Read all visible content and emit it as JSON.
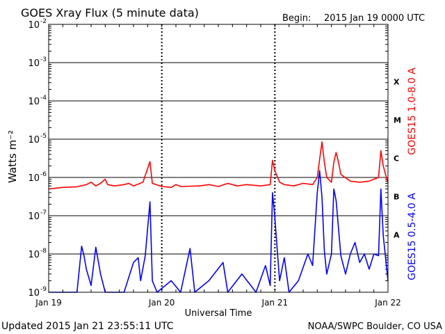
{
  "header": {
    "title": "GOES Xray Flux (5 minute data)",
    "begin_label": "Begin:",
    "begin_value": "2015 Jan 19 0000 UTC"
  },
  "footer": {
    "updated": "Updated 2015 Jan 21 23:55:11 UTC",
    "credit": "NOAA/SWPC Boulder, CO USA"
  },
  "colors": {
    "long_channel": "#ff0000",
    "short_channel": "#0000ff",
    "grid": "#000000"
  },
  "chart_data": {
    "type": "line",
    "title": "GOES Xray Flux (5 minute data)",
    "xlabel": "Universal Time",
    "ylabel": "Watts m⁻²",
    "y_scale": "log",
    "ylim": [
      1e-09,
      0.01
    ],
    "xlim": [
      0,
      72
    ],
    "x_units": "hours since 2015 Jan 19 0000 UTC",
    "x_ticks": [
      {
        "x": 0,
        "label": "Jan 19"
      },
      {
        "x": 24,
        "label": "Jan 20"
      },
      {
        "x": 48,
        "label": "Jan 21"
      },
      {
        "x": 72,
        "label": "Jan 22"
      }
    ],
    "y_ticks": [
      {
        "exp": -9,
        "label": "10",
        "sup": "-9"
      },
      {
        "exp": -8,
        "label": "10",
        "sup": "-8"
      },
      {
        "exp": -7,
        "label": "10",
        "sup": "-7"
      },
      {
        "exp": -6,
        "label": "10",
        "sup": "-6"
      },
      {
        "exp": -5,
        "label": "10",
        "sup": "-5"
      },
      {
        "exp": -4,
        "label": "10",
        "sup": "-4"
      },
      {
        "exp": -3,
        "label": "10",
        "sup": "-3"
      },
      {
        "exp": -2,
        "label": "10",
        "sup": "-2"
      }
    ],
    "flare_classes": [
      {
        "label": "A",
        "exp": -7.5
      },
      {
        "label": "B",
        "exp": -6.5
      },
      {
        "label": "C",
        "exp": -5.5
      },
      {
        "label": "M",
        "exp": -4.5
      },
      {
        "label": "X",
        "exp": -3.5
      }
    ],
    "grid": true,
    "series": [
      {
        "name": "GOES15 1.0-8.0 A",
        "color": "#ff0000",
        "points": [
          [
            0,
            5e-07
          ],
          [
            3,
            5.5e-07
          ],
          [
            6,
            5.7e-07
          ],
          [
            8,
            6.5e-07
          ],
          [
            9,
            7.5e-07
          ],
          [
            10,
            6e-07
          ],
          [
            11,
            7e-07
          ],
          [
            12,
            9e-07
          ],
          [
            12.5,
            6.5e-07
          ],
          [
            14,
            6e-07
          ],
          [
            16,
            6.5e-07
          ],
          [
            17,
            7e-07
          ],
          [
            18,
            6e-07
          ],
          [
            20,
            7.5e-07
          ],
          [
            21.5,
            2.6e-06
          ],
          [
            22,
            7e-07
          ],
          [
            24,
            5.8e-07
          ],
          [
            26,
            5.5e-07
          ],
          [
            27,
            6.5e-07
          ],
          [
            28,
            5.8e-07
          ],
          [
            32,
            6e-07
          ],
          [
            34,
            6.5e-07
          ],
          [
            36,
            5.8e-07
          ],
          [
            38,
            7e-07
          ],
          [
            40,
            6e-07
          ],
          [
            42,
            6.5e-07
          ],
          [
            45,
            6e-07
          ],
          [
            47,
            6.5e-07
          ],
          [
            47.5,
            2.8e-06
          ],
          [
            48,
            1.5e-06
          ],
          [
            49,
            7.5e-07
          ],
          [
            50,
            6.5e-07
          ],
          [
            52,
            6e-07
          ],
          [
            54,
            7e-07
          ],
          [
            56,
            6.5e-07
          ],
          [
            57,
            1e-06
          ],
          [
            57.5,
            3e-06
          ],
          [
            58,
            8.5e-06
          ],
          [
            58.5,
            2.5e-06
          ],
          [
            59,
            1e-06
          ],
          [
            60,
            7.5e-07
          ],
          [
            60.5,
            2.5e-06
          ],
          [
            61,
            4.5e-06
          ],
          [
            61.5,
            2.5e-06
          ],
          [
            62,
            1.2e-06
          ],
          [
            64,
            8e-07
          ],
          [
            66,
            7.5e-07
          ],
          [
            68,
            8e-07
          ],
          [
            70,
            1e-06
          ],
          [
            70.5,
            5e-06
          ],
          [
            71,
            2e-06
          ],
          [
            72,
            7e-07
          ]
        ]
      },
      {
        "name": "GOES15 0.5-4.0 A",
        "color": "#0000ff",
        "points": [
          [
            0,
            1e-09
          ],
          [
            6,
            1e-09
          ],
          [
            7,
            1.6e-08
          ],
          [
            7.5,
            9e-09
          ],
          [
            8,
            4e-09
          ],
          [
            9,
            1.5e-09
          ],
          [
            10,
            1.5e-08
          ],
          [
            11,
            3e-09
          ],
          [
            12,
            1e-09
          ],
          [
            14,
            1e-09
          ],
          [
            16,
            1e-09
          ],
          [
            18,
            6e-09
          ],
          [
            19,
            8e-09
          ],
          [
            19.5,
            2e-09
          ],
          [
            20.5,
            9e-09
          ],
          [
            21.5,
            2.3e-07
          ],
          [
            22,
            2e-09
          ],
          [
            23,
            1e-09
          ],
          [
            26,
            2e-09
          ],
          [
            28,
            1e-09
          ],
          [
            30,
            1.4e-08
          ],
          [
            31,
            1e-09
          ],
          [
            34,
            2e-09
          ],
          [
            37,
            6e-09
          ],
          [
            38,
            1e-09
          ],
          [
            41,
            3e-09
          ],
          [
            44,
            1e-09
          ],
          [
            46,
            5e-09
          ],
          [
            47,
            1.5e-09
          ],
          [
            47.5,
            4e-07
          ],
          [
            48,
            9e-08
          ],
          [
            48.5,
            1.3e-08
          ],
          [
            49,
            2e-09
          ],
          [
            50,
            8e-09
          ],
          [
            51,
            1e-09
          ],
          [
            53,
            2e-09
          ],
          [
            55,
            1e-08
          ],
          [
            56,
            5e-09
          ],
          [
            57,
            4e-07
          ],
          [
            57.5,
            1.5e-06
          ],
          [
            58,
            3e-07
          ],
          [
            58.5,
            1.2e-08
          ],
          [
            59,
            3e-09
          ],
          [
            60,
            1e-08
          ],
          [
            60.5,
            5e-07
          ],
          [
            61,
            2.5e-07
          ],
          [
            62,
            9e-09
          ],
          [
            63,
            3e-09
          ],
          [
            64,
            1e-08
          ],
          [
            65,
            2e-08
          ],
          [
            66,
            6e-09
          ],
          [
            67,
            1e-08
          ],
          [
            68,
            4e-09
          ],
          [
            69,
            1e-08
          ],
          [
            70,
            9e-09
          ],
          [
            70.5,
            5e-07
          ],
          [
            71,
            3e-08
          ],
          [
            72,
            2e-09
          ]
        ]
      }
    ]
  }
}
